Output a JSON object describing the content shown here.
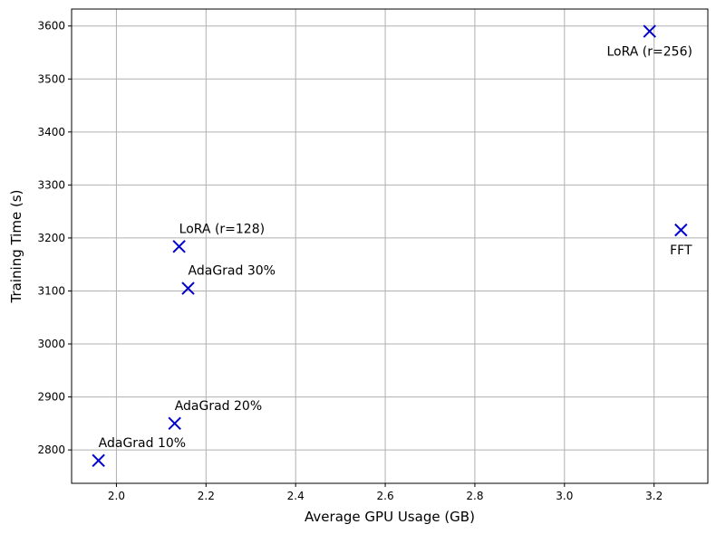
{
  "chart_data": {
    "type": "scatter",
    "title": "",
    "xlabel": "Average GPU Usage (GB)",
    "ylabel": "Training Time (s)",
    "xlim": [
      1.9,
      3.32
    ],
    "ylim": [
      2737,
      3632
    ],
    "xticks": [
      2.0,
      2.2,
      2.4,
      2.6,
      2.8,
      3.0,
      3.2
    ],
    "xtick_labels": [
      "2.0",
      "2.2",
      "2.4",
      "2.6",
      "2.8",
      "3.0",
      "3.2"
    ],
    "yticks": [
      2800,
      2900,
      3000,
      3100,
      3200,
      3300,
      3400,
      3500,
      3600
    ],
    "ytick_labels": [
      "2800",
      "2900",
      "3000",
      "3100",
      "3200",
      "3300",
      "3400",
      "3500",
      "3600"
    ],
    "grid": true,
    "marker": "x",
    "marker_color": "#0000cc",
    "points": [
      {
        "label": "LoRA (r=256)",
        "x": 3.19,
        "y": 3590,
        "label_pos": "below"
      },
      {
        "label": "FFT",
        "x": 3.26,
        "y": 3215,
        "label_pos": "below"
      },
      {
        "label": "LoRA (r=128)",
        "x": 2.14,
        "y": 3184,
        "label_pos": "above"
      },
      {
        "label": "AdaGrad 30%",
        "x": 2.16,
        "y": 3105,
        "label_pos": "above"
      },
      {
        "label": "AdaGrad 20%",
        "x": 2.13,
        "y": 2850,
        "label_pos": "above"
      },
      {
        "label": "AdaGrad 10%",
        "x": 1.96,
        "y": 2780,
        "label_pos": "above"
      }
    ]
  }
}
